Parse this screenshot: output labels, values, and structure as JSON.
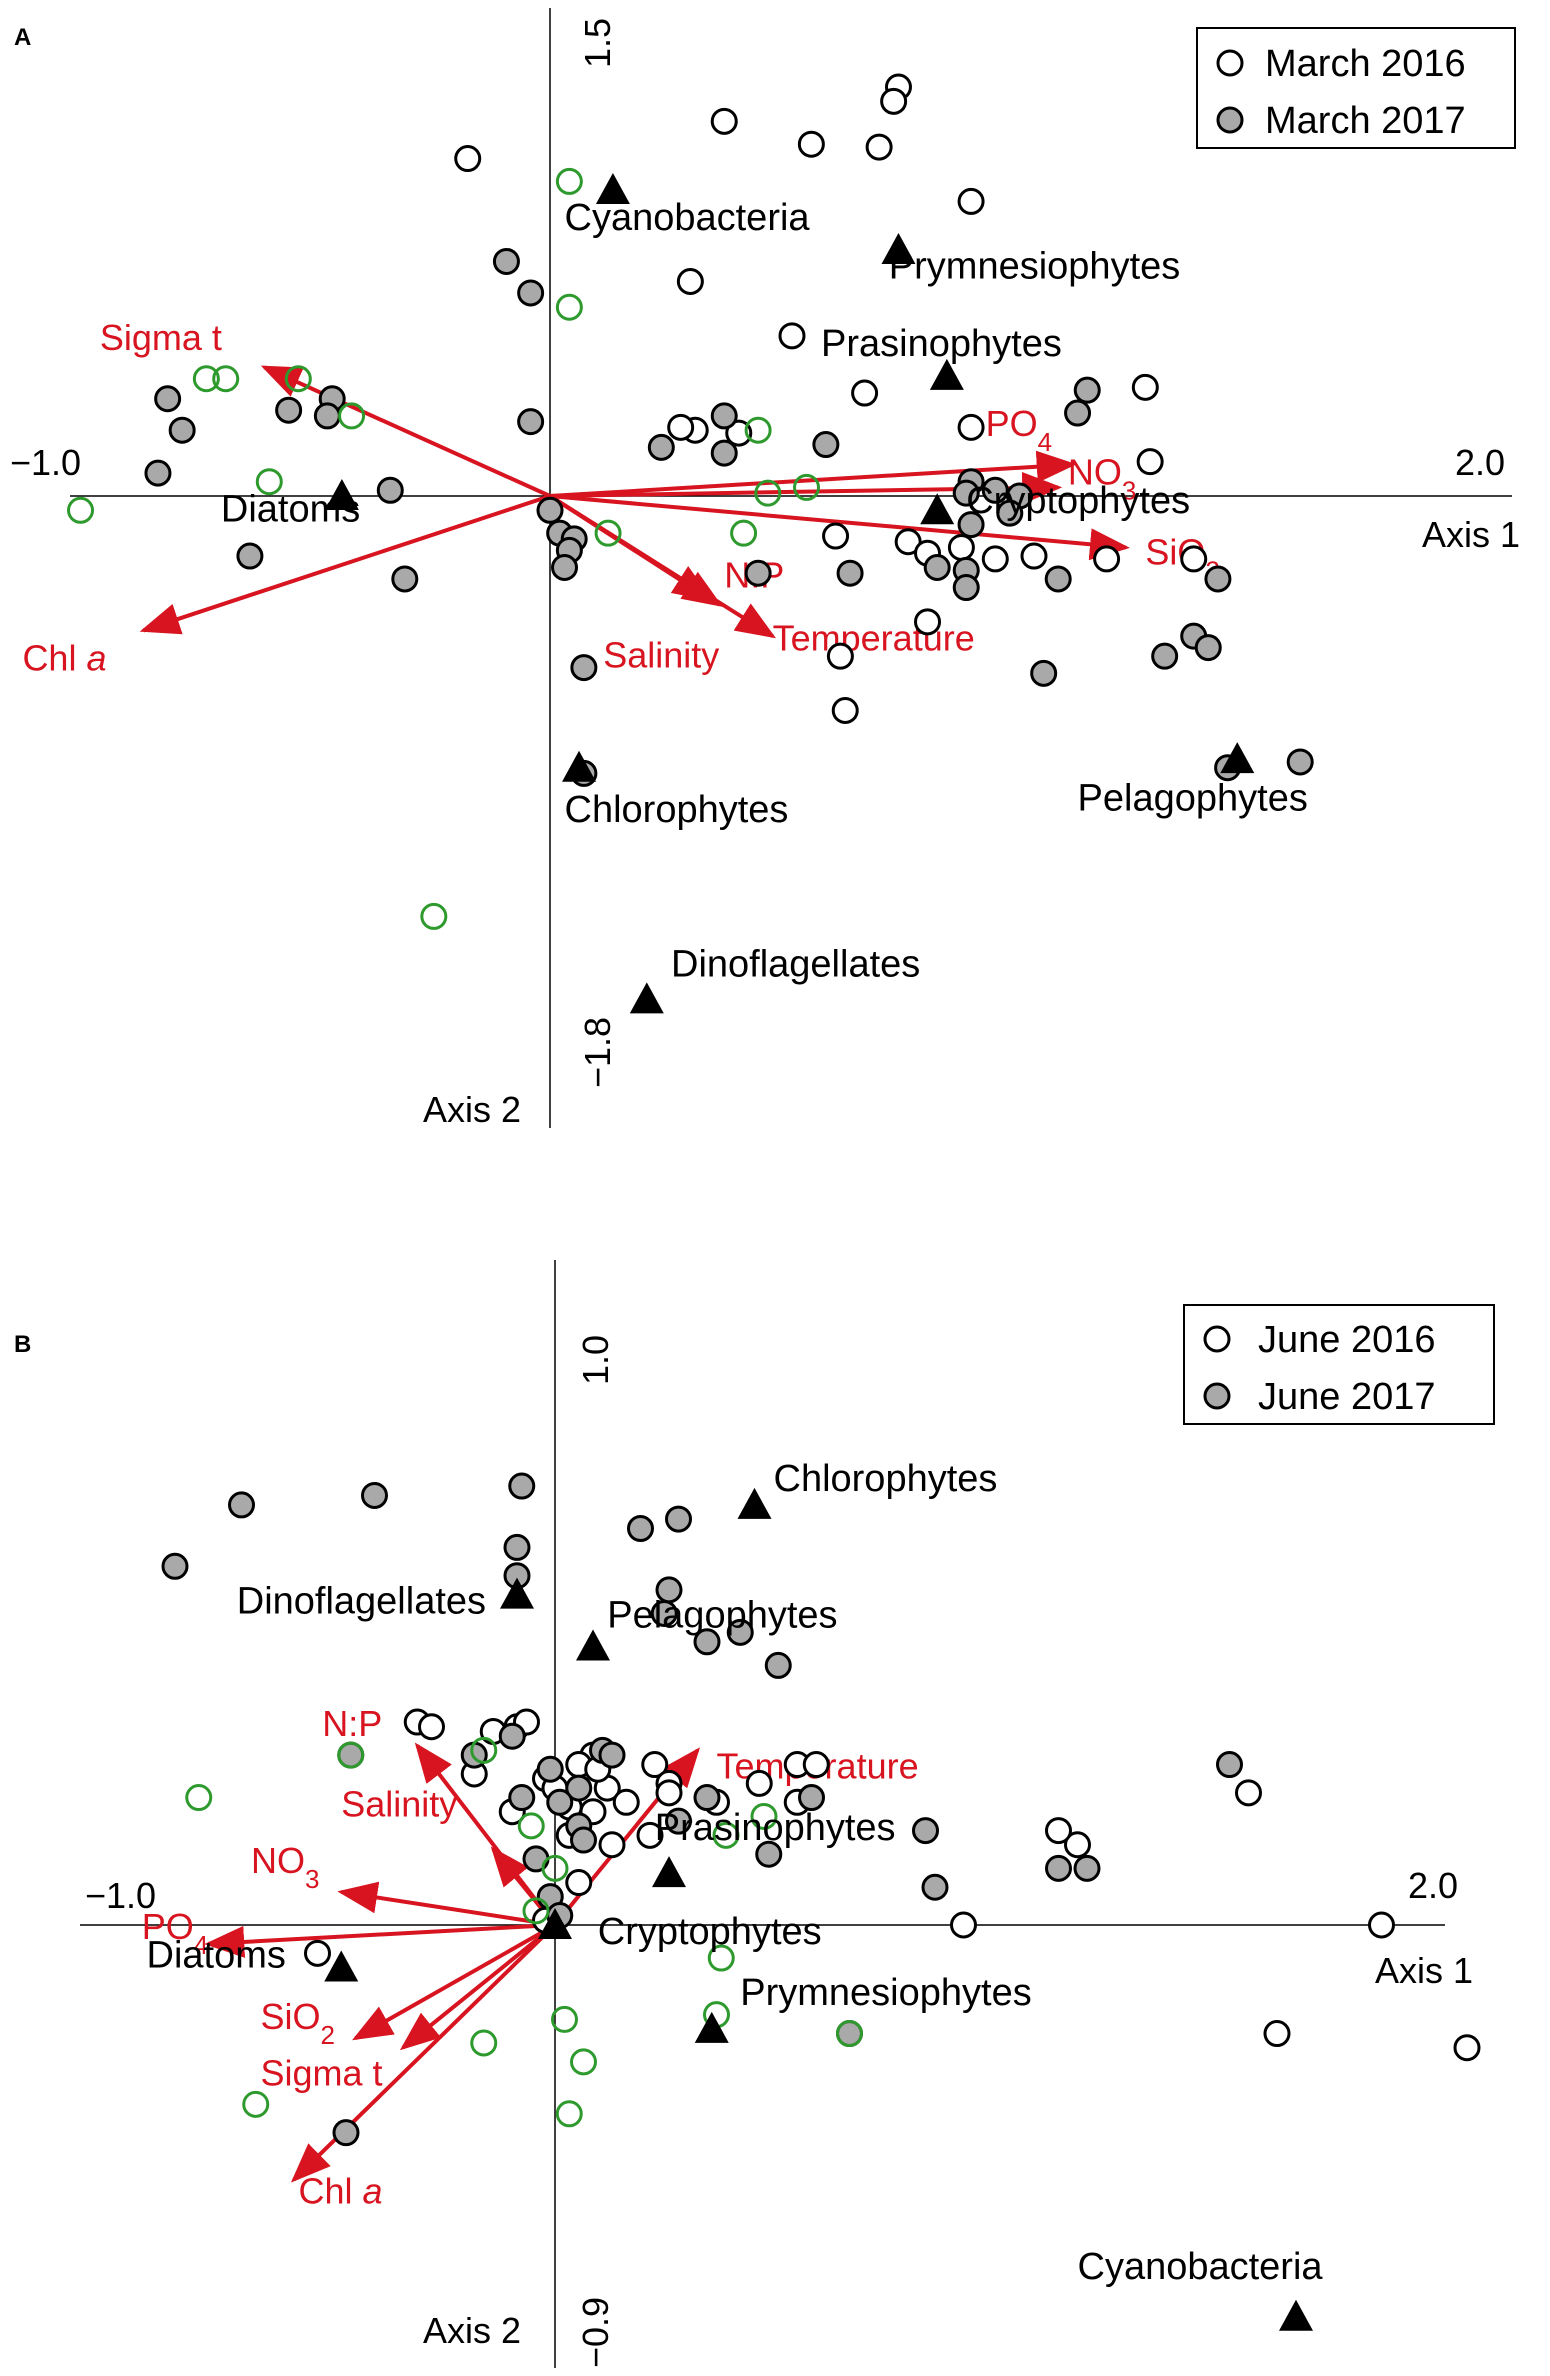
{
  "colors": {
    "axis": "#000000",
    "arrow": "#d7141f",
    "env_label": "#d7141f",
    "open_marker_stroke": "#000000",
    "filled_marker": "#a9a9a9",
    "green_marker": "#2e9a2e",
    "species_marker": "#000000"
  },
  "chart_data": [
    {
      "type": "scatter",
      "panel_label": "A",
      "title": "",
      "xlabel": "Axis 1",
      "ylabel": "Axis 2",
      "xlim": [
        -1.0,
        2.0
      ],
      "ylim": [
        -1.8,
        1.5
      ],
      "xmin_label": "−1.0",
      "xmax_label": "2.0",
      "ymin_label": "−1.8",
      "ymax_label": "1.5",
      "grid": false,
      "legend_position": "top-right",
      "legend": [
        {
          "label": "March 2016",
          "marker": "open"
        },
        {
          "label": "March 2017",
          "marker": "filled"
        }
      ],
      "series": [
        {
          "name": "March 2016",
          "marker": "open",
          "points": [
            [
              0.72,
              1.43
            ],
            [
              0.71,
              1.38
            ],
            [
              0.36,
              1.31
            ],
            [
              0.54,
              1.23
            ],
            [
              0.68,
              1.22
            ],
            [
              -0.17,
              1.18
            ],
            [
              0.87,
              1.03
            ],
            [
              0.29,
              0.75
            ],
            [
              0.5,
              0.56
            ],
            [
              0.65,
              0.36
            ],
            [
              1.23,
              0.38
            ],
            [
              1.24,
              0.12
            ],
            [
              0.3,
              0.23
            ],
            [
              0.39,
              0.22
            ],
            [
              0.27,
              0.24
            ],
            [
              0.87,
              0.24
            ],
            [
              0.59,
              -0.14
            ],
            [
              0.74,
              -0.16
            ],
            [
              0.85,
              -0.18
            ],
            [
              0.92,
              -0.22
            ],
            [
              0.78,
              -0.2
            ],
            [
              1.0,
              -0.21
            ],
            [
              1.15,
              -0.22
            ],
            [
              1.33,
              -0.22
            ],
            [
              0.78,
              -0.44
            ],
            [
              0.6,
              -0.56
            ],
            [
              0.61,
              -0.75
            ]
          ]
        },
        {
          "name": "March 2017",
          "marker": "filled",
          "points": [
            [
              -0.09,
              0.82
            ],
            [
              -0.04,
              0.71
            ],
            [
              -0.79,
              0.34
            ],
            [
              -0.76,
              0.23
            ],
            [
              -0.54,
              0.3
            ],
            [
              -0.45,
              0.34
            ],
            [
              -0.46,
              0.28
            ],
            [
              -0.81,
              0.08
            ],
            [
              -0.04,
              0.26
            ],
            [
              0.23,
              0.17
            ],
            [
              0.36,
              0.15
            ],
            [
              0.36,
              0.28
            ],
            [
              0.57,
              0.18
            ],
            [
              1.11,
              0.37
            ],
            [
              1.09,
              0.29
            ],
            [
              0.92,
              0.02
            ],
            [
              0.97,
              0.0
            ],
            [
              0.87,
              0.05
            ],
            [
              0.95,
              -0.06
            ],
            [
              0.86,
              0.01
            ],
            [
              0.87,
              -0.1
            ],
            [
              -0.33,
              0.02
            ],
            [
              0.0,
              -0.05
            ],
            [
              0.02,
              -0.13
            ],
            [
              0.05,
              -0.15
            ],
            [
              0.04,
              -0.19
            ],
            [
              0.03,
              -0.25
            ],
            [
              -0.62,
              -0.21
            ],
            [
              -0.3,
              -0.29
            ],
            [
              0.43,
              -0.27
            ],
            [
              0.62,
              -0.27
            ],
            [
              0.8,
              -0.25
            ],
            [
              0.86,
              -0.26
            ],
            [
              0.86,
              -0.32
            ],
            [
              1.05,
              -0.29
            ],
            [
              1.38,
              -0.29
            ],
            [
              1.33,
              -0.49
            ],
            [
              1.36,
              -0.53
            ],
            [
              1.27,
              -0.56
            ],
            [
              1.02,
              -0.62
            ],
            [
              1.4,
              -0.95
            ],
            [
              0.07,
              -0.6
            ],
            [
              1.55,
              -0.93
            ],
            [
              0.07,
              -0.97
            ]
          ]
        },
        {
          "name": "",
          "marker": "green",
          "points": [
            [
              -0.71,
              0.41
            ],
            [
              -0.67,
              0.41
            ],
            [
              -0.52,
              0.41
            ],
            [
              -0.58,
              0.05
            ],
            [
              -0.41,
              0.28
            ],
            [
              -0.97,
              -0.05
            ],
            [
              0.04,
              0.66
            ],
            [
              0.04,
              1.1
            ],
            [
              0.43,
              0.23
            ],
            [
              0.45,
              0.01
            ],
            [
              0.53,
              0.03
            ],
            [
              0.4,
              -0.13
            ],
            [
              0.12,
              -0.13
            ],
            [
              -0.24,
              -1.47
            ]
          ]
        },
        {
          "name": "",
          "marker": "triangle",
          "points": [
            [
              0.13,
              1.07
            ],
            [
              0.72,
              0.86
            ],
            [
              0.82,
              0.42
            ],
            [
              0.8,
              -0.05
            ],
            [
              -0.43,
              0.0
            ],
            [
              0.06,
              -0.95
            ],
            [
              1.42,
              -0.92
            ],
            [
              0.2,
              -1.76
            ]
          ]
        }
      ],
      "species_labels": [
        {
          "text": "Cyanobacteria",
          "x": 0.03,
          "y": 0.93
        },
        {
          "text": "Prymnesiophytes",
          "x": 0.7,
          "y": 0.76
        },
        {
          "text": "Prasinophytes",
          "x": 0.56,
          "y": 0.49
        },
        {
          "text": "Cryptophytes",
          "x": 0.86,
          "y": -0.06
        },
        {
          "text": "Diatoms",
          "x": -0.68,
          "y": -0.09
        },
        {
          "text": "Chlorophytes",
          "x": 0.03,
          "y": -1.14
        },
        {
          "text": "Pelagophytes",
          "x": 1.09,
          "y": -1.1
        },
        {
          "text": "Dinoflagellates",
          "x": 0.25,
          "y": -1.68
        }
      ],
      "vectors": [
        {
          "label": "Sigma t",
          "x": -0.59,
          "y": 0.45,
          "lx": -0.93,
          "ly": 0.51
        },
        {
          "label": "Chl a",
          "x": -0.84,
          "y": -0.47,
          "lx": -1.09,
          "ly": -0.61
        },
        {
          "label": "PO4",
          "x": 1.08,
          "y": 0.11,
          "lx": 0.9,
          "ly": 0.21
        },
        {
          "label": "NO3",
          "x": 1.05,
          "y": 0.03,
          "lx": 1.07,
          "ly": 0.04
        },
        {
          "label": "SiO2",
          "x": 1.19,
          "y": -0.18,
          "lx": 1.23,
          "ly": -0.24
        },
        {
          "label": "N:P",
          "x": 0.33,
          "y": -0.36,
          "lx": 0.36,
          "ly": -0.32
        },
        {
          "label": "Temperature",
          "x": 0.46,
          "y": -0.49,
          "lx": 0.46,
          "ly": -0.54
        },
        {
          "label": "Salinity",
          "x": 0.35,
          "y": -0.38,
          "lx": 0.11,
          "ly": -0.6
        }
      ]
    },
    {
      "type": "scatter",
      "panel_label": "B",
      "title": "",
      "xlabel": "Axis 1",
      "ylabel": "Axis 2",
      "xlim": [
        -1.0,
        2.0
      ],
      "ylim": [
        -0.9,
        1.0
      ],
      "xmin_label": "−1.0",
      "xmax_label": "2.0",
      "ymin_label": "−0.9",
      "ymax_label": "1.0",
      "grid": false,
      "legend_position": "top-right",
      "legend": [
        {
          "label": "June 2016",
          "marker": "open"
        },
        {
          "label": "June 2017",
          "marker": "filled"
        }
      ],
      "series": [
        {
          "name": "June 2016",
          "marker": "open",
          "points": [
            [
              -0.29,
              0.43
            ],
            [
              -0.26,
              0.42
            ],
            [
              -0.13,
              0.41
            ],
            [
              -0.08,
              0.42
            ],
            [
              -0.06,
              0.43
            ],
            [
              0.08,
              0.36
            ],
            [
              0.05,
              0.34
            ],
            [
              0.11,
              0.29
            ],
            [
              0.21,
              0.34
            ],
            [
              0.24,
              0.3
            ],
            [
              0.51,
              0.34
            ],
            [
              0.55,
              0.34
            ],
            [
              0.43,
              0.3
            ],
            [
              -0.17,
              0.32
            ],
            [
              -0.02,
              0.31
            ],
            [
              -0.09,
              0.24
            ],
            [
              0.0,
              0.29
            ],
            [
              0.09,
              0.33
            ],
            [
              0.03,
              0.25
            ],
            [
              0.08,
              0.24
            ],
            [
              0.12,
              0.17
            ],
            [
              0.2,
              0.19
            ],
            [
              0.34,
              0.26
            ],
            [
              0.24,
              0.28
            ],
            [
              0.15,
              0.26
            ],
            [
              0.03,
              0.19
            ],
            [
              0.05,
              0.09
            ],
            [
              0.51,
              0.26
            ],
            [
              1.46,
              0.28
            ],
            [
              1.1,
              0.17
            ],
            [
              1.06,
              0.2
            ],
            [
              0.86,
              0.0
            ],
            [
              1.74,
              0.0
            ],
            [
              -0.02,
              0.01
            ],
            [
              -0.5,
              -0.06
            ],
            [
              1.52,
              -0.23
            ],
            [
              1.92,
              -0.26
            ]
          ]
        },
        {
          "name": "June 2017",
          "marker": "filled",
          "points": [
            [
              -0.07,
              0.93
            ],
            [
              -0.66,
              0.89
            ],
            [
              -0.38,
              0.91
            ],
            [
              -0.8,
              0.76
            ],
            [
              0.18,
              0.84
            ],
            [
              0.26,
              0.86
            ],
            [
              -0.08,
              0.8
            ],
            [
              -0.08,
              0.74
            ],
            [
              0.24,
              0.71
            ],
            [
              0.23,
              0.66
            ],
            [
              0.39,
              0.62
            ],
            [
              0.32,
              0.6
            ],
            [
              0.47,
              0.55
            ],
            [
              1.42,
              0.34
            ],
            [
              -0.43,
              0.36
            ],
            [
              -0.17,
              0.36
            ],
            [
              0.1,
              0.37
            ],
            [
              -0.09,
              0.4
            ],
            [
              0.12,
              0.36
            ],
            [
              -0.01,
              0.33
            ],
            [
              0.05,
              0.29
            ],
            [
              -0.07,
              0.27
            ],
            [
              0.01,
              0.26
            ],
            [
              0.05,
              0.21
            ],
            [
              0.26,
              0.22
            ],
            [
              0.32,
              0.27
            ],
            [
              0.54,
              0.27
            ],
            [
              0.78,
              0.2
            ],
            [
              1.06,
              0.12
            ],
            [
              1.12,
              0.12
            ],
            [
              0.8,
              0.08
            ],
            [
              0.45,
              0.15
            ],
            [
              -0.04,
              0.14
            ],
            [
              0.06,
              0.18
            ],
            [
              -0.01,
              0.06
            ],
            [
              0.01,
              0.02
            ],
            [
              0.62,
              -0.23
            ],
            [
              -0.44,
              -0.44
            ]
          ]
        },
        {
          "name": "",
          "marker": "green",
          "points": [
            [
              -0.43,
              0.36
            ],
            [
              -0.15,
              0.37
            ],
            [
              -0.05,
              0.21
            ],
            [
              0.36,
              0.19
            ],
            [
              -0.75,
              0.27
            ],
            [
              0.0,
              0.12
            ],
            [
              -0.04,
              0.03
            ],
            [
              0.35,
              -0.07
            ],
            [
              0.44,
              0.23
            ],
            [
              -0.15,
              -0.25
            ],
            [
              0.06,
              -0.29
            ],
            [
              0.03,
              -0.4
            ],
            [
              -0.63,
              -0.38
            ],
            [
              0.34,
              -0.19
            ],
            [
              0.02,
              -0.2
            ],
            [
              0.62,
              -0.23
            ]
          ]
        },
        {
          "name": "",
          "marker": "triangle",
          "points": [
            [
              0.42,
              0.89
            ],
            [
              -0.08,
              0.7
            ],
            [
              0.08,
              0.59
            ],
            [
              0.24,
              0.11
            ],
            [
              0.0,
              0.0
            ],
            [
              -0.45,
              -0.09
            ],
            [
              0.33,
              -0.22
            ],
            [
              1.56,
              -0.83
            ]
          ]
        }
      ],
      "species_labels": [
        {
          "text": "Chlorophytes",
          "x": 0.46,
          "y": 0.92
        },
        {
          "text": "Dinoflagellates",
          "x": -0.67,
          "y": 0.66
        },
        {
          "text": "Pelagophytes",
          "x": 0.11,
          "y": 0.63
        },
        {
          "text": "Prasinophytes",
          "x": 0.21,
          "y": 0.18
        },
        {
          "text": "Cryptophytes",
          "x": 0.09,
          "y": -0.04
        },
        {
          "text": "Diatoms",
          "x": -0.86,
          "y": -0.09
        },
        {
          "text": "Prymnesiophytes",
          "x": 0.39,
          "y": -0.17
        },
        {
          "text": "Cyanobacteria",
          "x": 1.1,
          "y": -0.75
        }
      ],
      "vectors": [
        {
          "label": "N:P",
          "x": -0.29,
          "y": 0.38,
          "lx": -0.49,
          "ly": 0.4
        },
        {
          "label": "Salinity",
          "x": -0.13,
          "y": 0.16,
          "lx": -0.45,
          "ly": 0.23
        },
        {
          "label": "NO3",
          "x": -0.45,
          "y": 0.07,
          "lx": -0.64,
          "ly": 0.11
        },
        {
          "label": "PO4",
          "x": -0.73,
          "y": -0.04,
          "lx": -0.87,
          "ly": -0.03
        },
        {
          "label": "SiO2",
          "x": -0.42,
          "y": -0.24,
          "lx": -0.62,
          "ly": -0.22
        },
        {
          "label": "Sigma t",
          "x": -0.32,
          "y": -0.26,
          "lx": -0.62,
          "ly": -0.34
        },
        {
          "label": "Chl a",
          "x": -0.55,
          "y": -0.54,
          "lx": -0.54,
          "ly": -0.59
        },
        {
          "label": "Temperature",
          "x": 0.3,
          "y": 0.37,
          "lx": 0.34,
          "ly": 0.31
        }
      ]
    }
  ]
}
